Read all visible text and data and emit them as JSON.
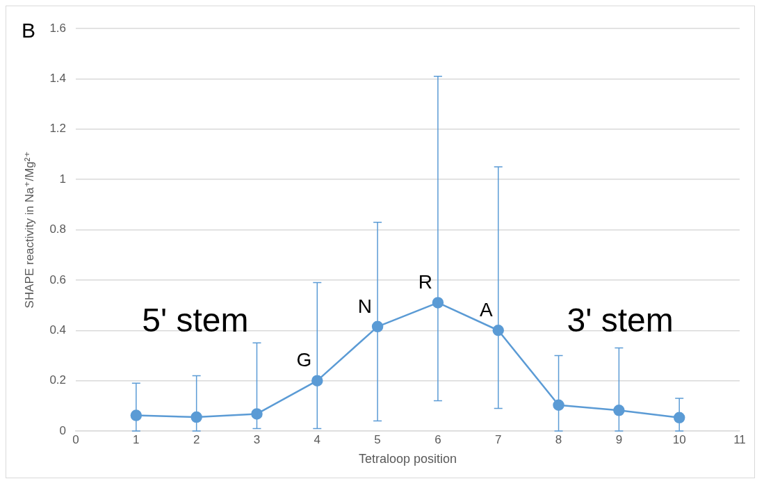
{
  "chart_data": {
    "type": "line",
    "xlabel": "Tetraloop position",
    "ylabel": "SHAPE reactivity in Na⁺/Mg²⁺",
    "x": [
      1,
      2,
      3,
      4,
      5,
      6,
      7,
      8,
      9,
      10
    ],
    "series": [
      {
        "color": "#5b9bd5",
        "values": [
          0.062,
          0.055,
          0.068,
          0.2,
          0.415,
          0.51,
          0.4,
          0.103,
          0.082,
          0.053
        ],
        "errors": [
          [
            0,
            0.19
          ],
          [
            0,
            0.22
          ],
          [
            0.01,
            0.35
          ],
          [
            0.01,
            0.59
          ],
          [
            0.04,
            0.83
          ],
          [
            0.12,
            1.41
          ],
          [
            0.09,
            1.05
          ],
          [
            0,
            0.3
          ],
          [
            0,
            0.33
          ],
          [
            0,
            0.13
          ]
        ]
      }
    ],
    "xlim": [
      0,
      11
    ],
    "xticks": [
      0,
      1,
      2,
      3,
      4,
      5,
      6,
      7,
      8,
      9,
      10,
      11
    ],
    "ylim": [
      0,
      1.6
    ],
    "yticks": [
      0,
      0.2,
      0.4,
      0.6,
      0.8,
      1,
      1.2,
      1.4,
      1.6
    ],
    "grid": "y",
    "legend": false,
    "marker": "circle",
    "line_style": "solid",
    "annotations": [
      "B",
      "5' stem",
      "3' stem",
      {
        "text": "G",
        "x": 4,
        "y": 0.2
      },
      {
        "text": "N",
        "x": 5,
        "y": 0.415
      },
      {
        "text": "R",
        "x": 6,
        "y": 0.51
      },
      {
        "text": "A",
        "x": 7,
        "y": 0.4
      }
    ]
  }
}
